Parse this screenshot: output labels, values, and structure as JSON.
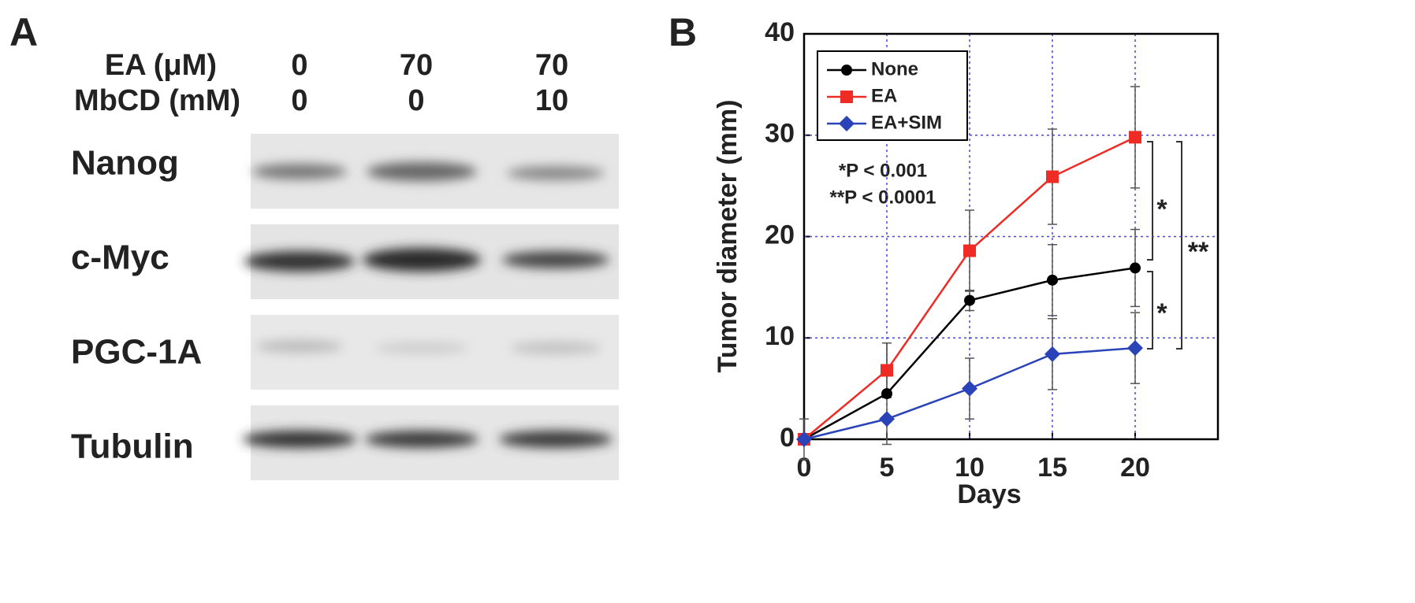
{
  "panel_a": {
    "label": "A",
    "conditions": [
      {
        "name": "EA (μM)",
        "values": [
          0,
          70,
          70
        ]
      },
      {
        "name": "MbCD (mM)",
        "values": [
          0,
          0,
          10
        ]
      }
    ],
    "proteins": [
      "Nanog",
      "c-Myc",
      "PGC-1A",
      "Tubulin"
    ]
  },
  "chart_data": {
    "type": "line",
    "panel_label": "B",
    "x_label": "Days",
    "y_label": "Tumor diameter (mm)",
    "x": [
      0,
      5,
      10,
      15,
      20
    ],
    "xlim": [
      0,
      25
    ],
    "xticks": [
      0,
      5,
      10,
      15,
      20
    ],
    "ylim": [
      0,
      40
    ],
    "yticks": [
      0,
      10,
      20,
      30,
      40
    ],
    "grid": true,
    "grid_color": "#4a4ad0",
    "legend": "upper left",
    "series": [
      {
        "name": "None",
        "color": "#000000",
        "marker": "circle",
        "values": [
          0,
          4.5,
          13.7,
          15.7,
          16.9
        ],
        "errors": [
          2,
          5,
          1,
          3.5,
          3.8
        ]
      },
      {
        "name": "EA",
        "color": "#ee2b24",
        "marker": "square",
        "values": [
          0,
          6.8,
          18.6,
          25.9,
          29.8
        ],
        "errors": [
          0,
          2.7,
          4,
          4.7,
          5
        ]
      },
      {
        "name": "EA+SIM",
        "color": "#2a43b8",
        "marker": "diamond",
        "values": [
          0,
          2,
          5,
          8.4,
          9
        ],
        "errors": [
          0,
          0,
          3,
          3.5,
          3.5
        ]
      }
    ],
    "annotations": [
      "*P < 0.001",
      "**P < 0.0001"
    ],
    "significance": [
      "*",
      "*",
      "**"
    ]
  }
}
